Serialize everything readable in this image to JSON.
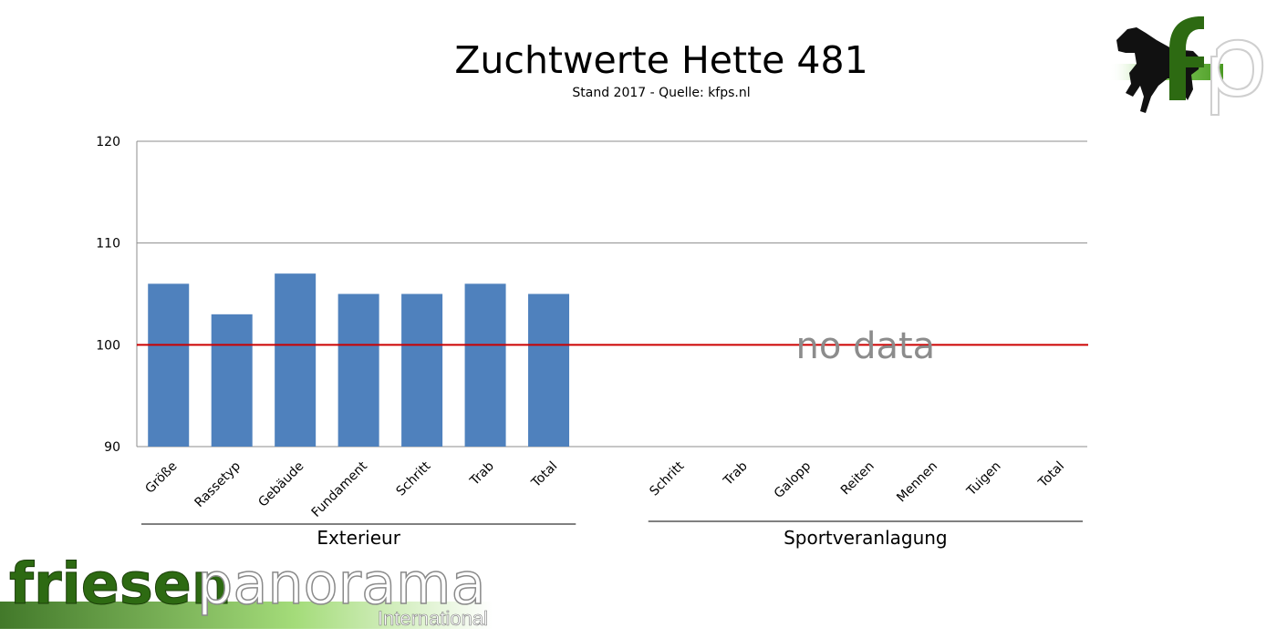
{
  "chart_data": {
    "type": "bar",
    "title": "Zuchtwerte Hette 481",
    "subtitle": "Stand 2017 - Quelle: kfps.nl",
    "ylim": [
      90,
      120
    ],
    "yticks": [
      90,
      100,
      110,
      120
    ],
    "reference_line": {
      "value": 100,
      "color": "#cc0000"
    },
    "bar_color": "#4f81bd",
    "grid": true,
    "groups": [
      {
        "name": "Exterieur",
        "categories": [
          "Größe",
          "Rassetyp",
          "Gebäude",
          "Fundament",
          "Schritt",
          "Trab",
          "Total"
        ],
        "values": [
          106,
          103,
          107,
          105,
          105,
          106,
          105
        ]
      },
      {
        "name": "Sportveranlagung",
        "categories": [
          "Schritt",
          "Trab",
          "Galopp",
          "Reiten",
          "Mennen",
          "Tuigen",
          "Total"
        ],
        "values": [
          null,
          null,
          null,
          null,
          null,
          null,
          null
        ],
        "no_data_label": "no data"
      }
    ]
  },
  "branding": {
    "top_right_logo": "fp",
    "bottom_left_logo_main": "friesenpanorama",
    "bottom_left_logo_sub": "International",
    "green": "#2d6a12"
  }
}
